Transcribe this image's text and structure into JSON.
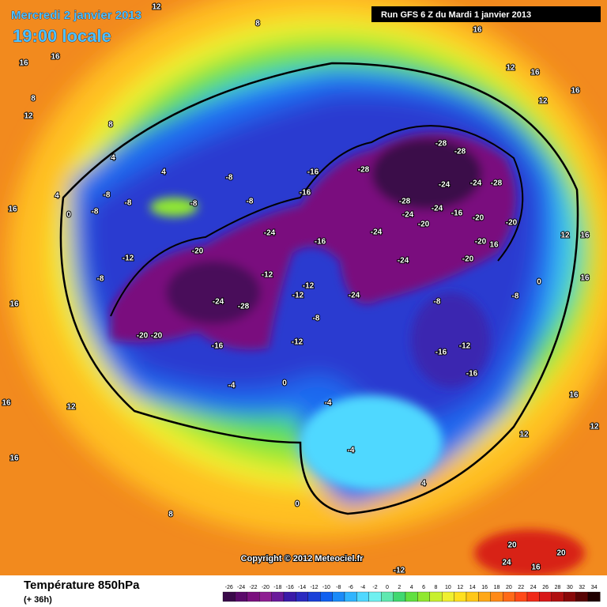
{
  "header": {
    "date": "Mercredi 2 janvier 2013",
    "time": "19:00 locale",
    "run": "Run GFS 6 Z du Mardi 1 janvier 2013"
  },
  "map": {
    "copyright": "Copyright © 2012 Meteociel.fr",
    "contour_labels": [
      "16",
      "16",
      "8",
      "12",
      "8",
      "4",
      "4",
      "4",
      "16",
      "0",
      "-8",
      "-8",
      "-8",
      "-8",
      "-8",
      "-8",
      "-12",
      "-8",
      "-20",
      "-24",
      "-16",
      "-16",
      "-16",
      "-28",
      "-28",
      "-28",
      "-28",
      "-24",
      "-24",
      "-28",
      "-24",
      "-24",
      "-16",
      "-24",
      "-20",
      "-20",
      "-20",
      "-20",
      "16",
      "-24",
      "-20",
      "-12",
      "-12",
      "-12",
      "-24",
      "-24",
      "-28",
      "-8",
      "-8",
      "-8",
      "-20",
      "-20",
      "-16",
      "-12",
      "-16",
      "-12",
      "-16",
      "-4",
      "0",
      "-4",
      "-4",
      "4",
      "0",
      "8",
      "16",
      "16",
      "16",
      "12",
      "12",
      "16",
      "12",
      "16",
      "0",
      "16",
      "16",
      "12",
      "12",
      "20",
      "20",
      "24",
      "16",
      "-12",
      "16",
      "12",
      "16",
      "8",
      "12"
    ]
  },
  "footer": {
    "title": "Température 850hPa",
    "lead": "(+ 36h)",
    "legend_ticks": [
      -26,
      -24,
      -22,
      -20,
      -18,
      -16,
      -14,
      -12,
      -10,
      -8,
      -6,
      -4,
      -2,
      0,
      2,
      4,
      6,
      8,
      10,
      12,
      14,
      16,
      18,
      20,
      22,
      24,
      26,
      28,
      30,
      32,
      34
    ],
    "legend_colors": [
      "#3a0a4a",
      "#5a0a6a",
      "#7a107e",
      "#8e1e92",
      "#6a1a9a",
      "#3a1aa8",
      "#2a2ac0",
      "#1a40d8",
      "#1060f0",
      "#1a8af8",
      "#30b4ff",
      "#50d8ff",
      "#70f0f0",
      "#60e8b0",
      "#40d870",
      "#60e040",
      "#90e830",
      "#c8f030",
      "#f0f030",
      "#ffe020",
      "#ffc818",
      "#ffa818",
      "#ff8a18",
      "#ff6a18",
      "#ff4a18",
      "#f02a18",
      "#d81818",
      "#b01010",
      "#880808",
      "#580404",
      "#200000"
    ]
  }
}
